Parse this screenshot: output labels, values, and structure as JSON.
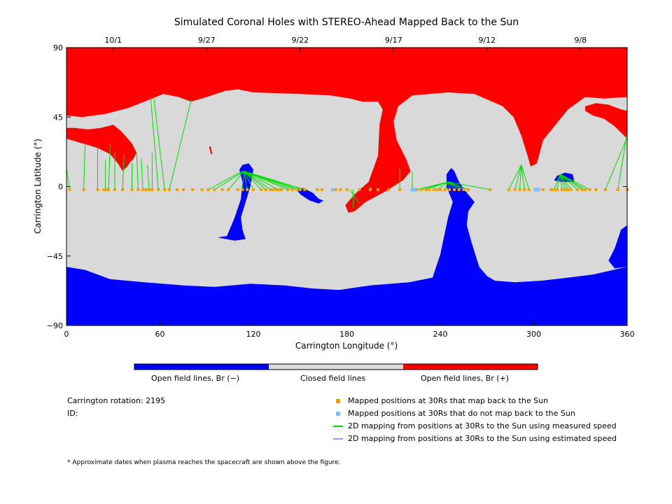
{
  "chart_data": {
    "type": "heatmap",
    "title": "Simulated Coronal Holes with STEREO-Ahead Mapped Back to the Sun",
    "xlabel": "Carrington Longitude (°)",
    "ylabel": "Carrington Latitude (°)",
    "xlim": [
      0,
      360
    ],
    "ylim": [
      -90,
      90
    ],
    "x_ticks": [
      "0",
      "60",
      "120",
      "180",
      "240",
      "300",
      "360"
    ],
    "y_ticks": [
      "90",
      "45",
      "0",
      "−45",
      "−90"
    ],
    "top_axis_dates": [
      {
        "label": "10/1",
        "longitude": 30
      },
      {
        "label": "9/27",
        "longitude": 90
      },
      {
        "label": "9/22",
        "longitude": 150
      },
      {
        "label": "9/17",
        "longitude": 210
      },
      {
        "label": "9/12",
        "longitude": 270
      },
      {
        "label": "9/8",
        "longitude": 330
      }
    ],
    "colorbar": {
      "labels": [
        "Open field lines, Br (−)",
        "Closed field lines",
        "Open field lines, Br (+)"
      ],
      "colors": [
        "#0000ff",
        "#d9d9d9",
        "#ff0000"
      ]
    },
    "regions": [
      {
        "field": "Br (+)",
        "color": "#ff0000",
        "outline": [
          [
            0,
            90
          ],
          [
            360,
            90
          ],
          [
            360,
            58
          ],
          [
            345,
            57
          ],
          [
            333,
            58
          ],
          [
            322,
            50
          ],
          [
            314,
            40
          ],
          [
            306,
            30
          ],
          [
            302,
            15
          ],
          [
            298,
            13
          ],
          [
            296,
            20
          ],
          [
            292,
            33
          ],
          [
            287,
            45
          ],
          [
            280,
            52
          ],
          [
            262,
            60
          ],
          [
            245,
            61
          ],
          [
            233,
            60
          ],
          [
            222,
            59
          ],
          [
            213,
            52
          ],
          [
            210,
            42
          ],
          [
            212,
            30
          ],
          [
            218,
            18
          ],
          [
            221,
            10
          ],
          [
            216,
            4
          ],
          [
            205,
            -3
          ],
          [
            192,
            -10
          ],
          [
            185,
            -16
          ],
          [
            181,
            -17
          ],
          [
            179,
            -12
          ],
          [
            185,
            -5
          ],
          [
            194,
            3
          ],
          [
            200,
            20
          ],
          [
            201,
            40
          ],
          [
            203,
            50
          ],
          [
            200,
            55
          ],
          [
            195,
            55
          ],
          [
            190,
            55
          ],
          [
            182,
            57
          ],
          [
            170,
            59
          ],
          [
            150,
            60
          ],
          [
            120,
            61
          ],
          [
            110,
            63
          ],
          [
            102,
            62
          ],
          [
            90,
            58
          ],
          [
            80,
            55
          ],
          [
            72,
            58
          ],
          [
            62,
            60
          ],
          [
            55,
            57
          ],
          [
            40,
            51
          ],
          [
            25,
            47
          ],
          [
            10,
            45
          ],
          [
            0,
            46
          ]
        ]
      },
      {
        "field": "Br (+)",
        "color": "#ff0000",
        "outline": [
          [
            0,
            31
          ],
          [
            10,
            28
          ],
          [
            20,
            25
          ],
          [
            28,
            21
          ],
          [
            33,
            15
          ],
          [
            36,
            10
          ],
          [
            39,
            13
          ],
          [
            41,
            16
          ],
          [
            43,
            18
          ],
          [
            45,
            22
          ],
          [
            42,
            28
          ],
          [
            35,
            36
          ],
          [
            30,
            40
          ],
          [
            22,
            38
          ],
          [
            14,
            37
          ],
          [
            5,
            38
          ],
          [
            0,
            38
          ]
        ]
      },
      {
        "field": "Br (+)",
        "color": "#ff0000",
        "outline": [
          [
            333,
            52
          ],
          [
            340,
            54
          ],
          [
            348,
            53
          ],
          [
            356,
            50
          ],
          [
            360,
            49
          ],
          [
            360,
            31
          ],
          [
            352,
            39
          ],
          [
            345,
            44
          ],
          [
            338,
            46
          ],
          [
            333,
            49
          ]
        ]
      },
      {
        "field": "Br (−)",
        "color": "#0000ff",
        "outline": [
          [
            360,
            -52
          ],
          [
            338,
            -57
          ],
          [
            322,
            -59
          ],
          [
            305,
            -61
          ],
          [
            288,
            -62
          ],
          [
            275,
            -61
          ],
          [
            270,
            -58
          ],
          [
            265,
            -52
          ],
          [
            260,
            -36
          ],
          [
            257,
            -25
          ],
          [
            258,
            -16
          ],
          [
            262,
            -10
          ],
          [
            257,
            -4
          ],
          [
            252,
            3
          ],
          [
            249,
            10
          ],
          [
            247,
            12
          ],
          [
            244,
            8
          ],
          [
            244,
            0
          ],
          [
            248,
            -10
          ],
          [
            245,
            -20
          ],
          [
            240,
            -44
          ],
          [
            235,
            -59
          ],
          [
            220,
            -62
          ],
          [
            195,
            -64
          ],
          [
            175,
            -67
          ],
          [
            158,
            -66
          ],
          [
            140,
            -64
          ],
          [
            118,
            -63
          ],
          [
            95,
            -65
          ],
          [
            75,
            -64
          ],
          [
            50,
            -62
          ],
          [
            28,
            -60
          ],
          [
            12,
            -54
          ],
          [
            0,
            -52
          ],
          [
            0,
            -90
          ],
          [
            360,
            -90
          ]
        ]
      },
      {
        "field": "Br (−)",
        "color": "#0000ff",
        "outline": [
          [
            103,
            -32
          ],
          [
            108,
            -20
          ],
          [
            112,
            -8
          ],
          [
            113,
            3
          ],
          [
            111,
            11
          ],
          [
            113,
            14
          ],
          [
            117,
            15
          ],
          [
            120,
            11
          ],
          [
            118,
            0
          ],
          [
            115,
            -10
          ],
          [
            112,
            -20
          ],
          [
            113,
            -28
          ],
          [
            115,
            -34
          ],
          [
            108,
            -35
          ],
          [
            97,
            -33
          ]
        ]
      },
      {
        "field": "Br (−)",
        "color": "#0000ff",
        "outline": [
          [
            152,
            -1
          ],
          [
            158,
            -4
          ],
          [
            162,
            -8
          ],
          [
            165,
            -9
          ],
          [
            162,
            -11
          ],
          [
            156,
            -9
          ],
          [
            150,
            -5
          ],
          [
            147,
            -1
          ]
        ]
      },
      {
        "field": "Br (−)",
        "color": "#0000ff",
        "outline": [
          [
            315,
            7
          ],
          [
            320,
            9
          ],
          [
            325,
            8
          ],
          [
            326,
            3
          ],
          [
            318,
            3
          ],
          [
            313,
            4
          ]
        ]
      },
      {
        "field": "Br (−)",
        "color": "#0000ff",
        "outline": [
          [
            360,
            -52
          ],
          [
            360,
            -25
          ],
          [
            356,
            -28
          ],
          [
            352,
            -40
          ],
          [
            348,
            -48
          ],
          [
            352,
            -53
          ]
        ]
      }
    ],
    "mapped_positions_latitude": -2,
    "mapped_positions_longitude": [
      2,
      11,
      20,
      24,
      25,
      27,
      31,
      36,
      42,
      46,
      49,
      51,
      53,
      55,
      59,
      63,
      66,
      71,
      75,
      81,
      87,
      91,
      95,
      100,
      104,
      110,
      113,
      116,
      120,
      125,
      128,
      131,
      132,
      134,
      136,
      138,
      142,
      145,
      148,
      150,
      153,
      161,
      164,
      173,
      176,
      180,
      188,
      195,
      200,
      207,
      214,
      222,
      225,
      228,
      231,
      233,
      236,
      238,
      240,
      243,
      246,
      249,
      252,
      255,
      258,
      272,
      284,
      288,
      291,
      294,
      297,
      306,
      311,
      313,
      315,
      318,
      320,
      322,
      324,
      328,
      331,
      333,
      336,
      340,
      346,
      354,
      360
    ],
    "unmapped_positions_longitude": [
      171,
      222,
      224,
      301,
      303
    ],
    "mapping_lines": [
      [
        2,
        12
      ],
      [
        11,
        28
      ],
      [
        20,
        25
      ],
      [
        25,
        17
      ],
      [
        27,
        28
      ],
      [
        31,
        23
      ],
      [
        36,
        21
      ],
      [
        42,
        15
      ],
      [
        46,
        22
      ],
      [
        49,
        18
      ],
      [
        53,
        14
      ],
      [
        55,
        22
      ],
      [
        59,
        60
      ],
      [
        63,
        55
      ],
      [
        66,
        55
      ],
      [
        91,
        11
      ],
      [
        95,
        10
      ],
      [
        104,
        10
      ],
      [
        113,
        10
      ],
      [
        116,
        10
      ],
      [
        120,
        10
      ],
      [
        125,
        10
      ],
      [
        128,
        9
      ],
      [
        131,
        9
      ],
      [
        136,
        7
      ],
      [
        142,
        5
      ],
      [
        145,
        5
      ],
      [
        148,
        4
      ],
      [
        150,
        2
      ],
      [
        153,
        1
      ],
      [
        182,
        0
      ],
      [
        184,
        -14
      ],
      [
        195,
        0
      ],
      [
        214,
        12
      ],
      [
        222,
        10
      ],
      [
        225,
        1
      ],
      [
        228,
        1
      ],
      [
        231,
        1
      ],
      [
        238,
        3
      ],
      [
        243,
        2
      ],
      [
        246,
        3
      ],
      [
        249,
        3
      ],
      [
        252,
        2
      ],
      [
        255,
        3
      ],
      [
        258,
        2
      ],
      [
        272,
        2
      ],
      [
        284,
        14
      ],
      [
        288,
        14
      ],
      [
        291,
        14
      ],
      [
        294,
        14
      ],
      [
        297,
        14
      ],
      [
        313,
        8
      ],
      [
        315,
        8
      ],
      [
        318,
        8
      ],
      [
        320,
        8
      ],
      [
        322,
        8
      ],
      [
        324,
        8
      ],
      [
        328,
        8
      ],
      [
        331,
        7
      ],
      [
        333,
        7
      ],
      [
        336,
        6
      ],
      [
        346,
        32
      ],
      [
        354,
        35
      ],
      [
        360,
        12
      ]
    ],
    "mapping_targets": [
      [
        0,
        12
      ],
      [
        12,
        28
      ],
      [
        20,
        25
      ],
      [
        25,
        17
      ],
      [
        28,
        28
      ],
      [
        31,
        23
      ],
      [
        37,
        21
      ],
      [
        42,
        15
      ],
      [
        45,
        22
      ],
      [
        48,
        18
      ],
      [
        52,
        14
      ],
      [
        55,
        22
      ],
      [
        54,
        58
      ],
      [
        56,
        58
      ],
      [
        80,
        56
      ],
      [
        113,
        10
      ],
      [
        114,
        10
      ],
      [
        114,
        10
      ],
      [
        114,
        10
      ],
      [
        114,
        10
      ],
      [
        114,
        10
      ],
      [
        114,
        10
      ],
      [
        114,
        10
      ],
      [
        114,
        10
      ],
      [
        114,
        10
      ],
      [
        114,
        10
      ],
      [
        114,
        10
      ],
      [
        114,
        10
      ],
      [
        114,
        10
      ],
      [
        114,
        10
      ],
      [
        188,
        -11
      ],
      [
        184,
        -14
      ],
      [
        195,
        0
      ],
      [
        214,
        12
      ],
      [
        222,
        10
      ],
      [
        245,
        3
      ],
      [
        245,
        3
      ],
      [
        245,
        3
      ],
      [
        245,
        3
      ],
      [
        245,
        3
      ],
      [
        245,
        3
      ],
      [
        245,
        3
      ],
      [
        245,
        3
      ],
      [
        245,
        3
      ],
      [
        245,
        3
      ],
      [
        245,
        3
      ],
      [
        292,
        14
      ],
      [
        292,
        14
      ],
      [
        292,
        14
      ],
      [
        292,
        14
      ],
      [
        292,
        14
      ],
      [
        317,
        8
      ],
      [
        317,
        8
      ],
      [
        317,
        8
      ],
      [
        317,
        8
      ],
      [
        317,
        8
      ],
      [
        317,
        8
      ],
      [
        317,
        8
      ],
      [
        317,
        8
      ],
      [
        317,
        8
      ],
      [
        317,
        8
      ],
      [
        360,
        32
      ],
      [
        360,
        35
      ],
      [
        360,
        12
      ]
    ],
    "red_fleck": [
      [
        92,
        26
      ],
      [
        93,
        22
      ],
      [
        93,
        21
      ]
    ]
  },
  "colorbar_caption": {
    "neg": "Open field lines, Br (−)",
    "closed": "Closed field lines",
    "pos": "Open field lines, Br (+)"
  },
  "info": {
    "rotation": "Carrington rotation: 2195",
    "id": "ID:"
  },
  "legend": [
    {
      "label": "Mapped positions at 30Rs that map back to the Sun",
      "color": "#f0a000",
      "marker": "square"
    },
    {
      "label": "Mapped positions at 30Rs that do not map back to the Sun",
      "color": "#7fbfff",
      "marker": "square"
    },
    {
      "label": "2D mapping from positions at 30Rs to the Sun using measured speed",
      "color": "#00dd00",
      "marker": "line"
    },
    {
      "label": "2D mapping from positions at 30Rs to the Sun using estimated speed",
      "color": "#bb88ee",
      "marker": "line"
    }
  ],
  "footnote": "* Approximate dates when plasma reaches the spacecraft are shown above the figure."
}
